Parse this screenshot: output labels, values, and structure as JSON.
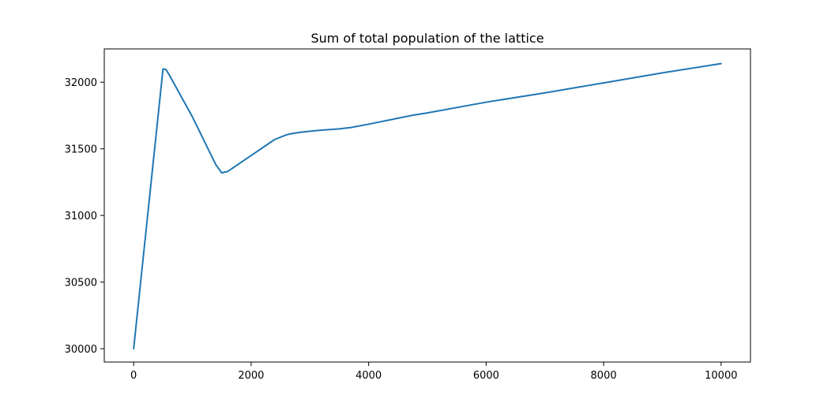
{
  "chart_data": {
    "type": "line",
    "title": "Sum of total population of the lattice",
    "xlabel": "",
    "ylabel": "",
    "xlim": [
      -500,
      10500
    ],
    "ylim": [
      29900,
      32250
    ],
    "xticks": [
      0,
      2000,
      4000,
      6000,
      8000,
      10000
    ],
    "yticks": [
      30000,
      30500,
      31000,
      31500,
      32000
    ],
    "grid": false,
    "line_color": "#1f77b4",
    "series": [
      {
        "x": [
          0,
          100,
          200,
          300,
          400,
          500,
          550,
          600,
          700,
          800,
          900,
          1000,
          1100,
          1200,
          1300,
          1400,
          1500,
          1550,
          1600,
          1700,
          1800,
          1900,
          2000,
          2200,
          2400,
          2600,
          2700,
          2800,
          3000,
          3200,
          3500,
          3700,
          4000,
          4500,
          4750,
          5000,
          6000,
          7000,
          8000,
          9000,
          10000
        ],
        "y": [
          30000,
          30420,
          30840,
          31260,
          31680,
          32100,
          32095,
          32060,
          31980,
          31900,
          31820,
          31740,
          31650,
          31560,
          31470,
          31380,
          31320,
          31325,
          31330,
          31360,
          31390,
          31420,
          31450,
          31510,
          31570,
          31605,
          31615,
          31622,
          31632,
          31640,
          31650,
          31660,
          31685,
          31730,
          31752,
          31770,
          31850,
          31920,
          31995,
          32070,
          32140
        ]
      }
    ]
  }
}
